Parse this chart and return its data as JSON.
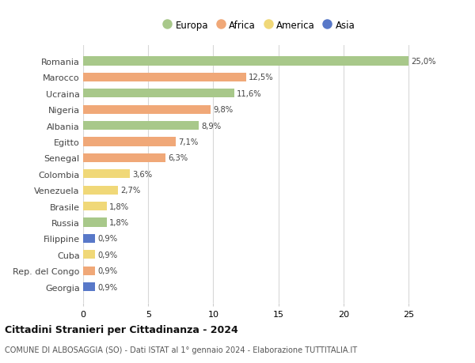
{
  "countries": [
    "Romania",
    "Marocco",
    "Ucraina",
    "Nigeria",
    "Albania",
    "Egitto",
    "Senegal",
    "Colombia",
    "Venezuela",
    "Brasile",
    "Russia",
    "Filippine",
    "Cuba",
    "Rep. del Congo",
    "Georgia"
  ],
  "values": [
    25.0,
    12.5,
    11.6,
    9.8,
    8.9,
    7.1,
    6.3,
    3.6,
    2.7,
    1.8,
    1.8,
    0.9,
    0.9,
    0.9,
    0.9
  ],
  "labels": [
    "25,0%",
    "12,5%",
    "11,6%",
    "9,8%",
    "8,9%",
    "7,1%",
    "6,3%",
    "3,6%",
    "2,7%",
    "1,8%",
    "1,8%",
    "0,9%",
    "0,9%",
    "0,9%",
    "0,9%"
  ],
  "continents": [
    "Europa",
    "Africa",
    "Europa",
    "Africa",
    "Europa",
    "Africa",
    "Africa",
    "America",
    "America",
    "America",
    "Europa",
    "Asia",
    "America",
    "Africa",
    "Asia"
  ],
  "continent_colors": {
    "Europa": "#a8c88a",
    "Africa": "#f0a878",
    "America": "#f0d878",
    "Asia": "#5878c8"
  },
  "legend_order": [
    "Europa",
    "Africa",
    "America",
    "Asia"
  ],
  "title": "Cittadini Stranieri per Cittadinanza - 2024",
  "subtitle": "COMUNE DI ALBOSAGGIA (SO) - Dati ISTAT al 1° gennaio 2024 - Elaborazione TUTTITALIA.IT",
  "xlim": [
    0,
    27
  ],
  "xticks": [
    0,
    5,
    10,
    15,
    20,
    25
  ],
  "background_color": "#ffffff",
  "grid_color": "#d8d8d8",
  "bar_height": 0.55
}
